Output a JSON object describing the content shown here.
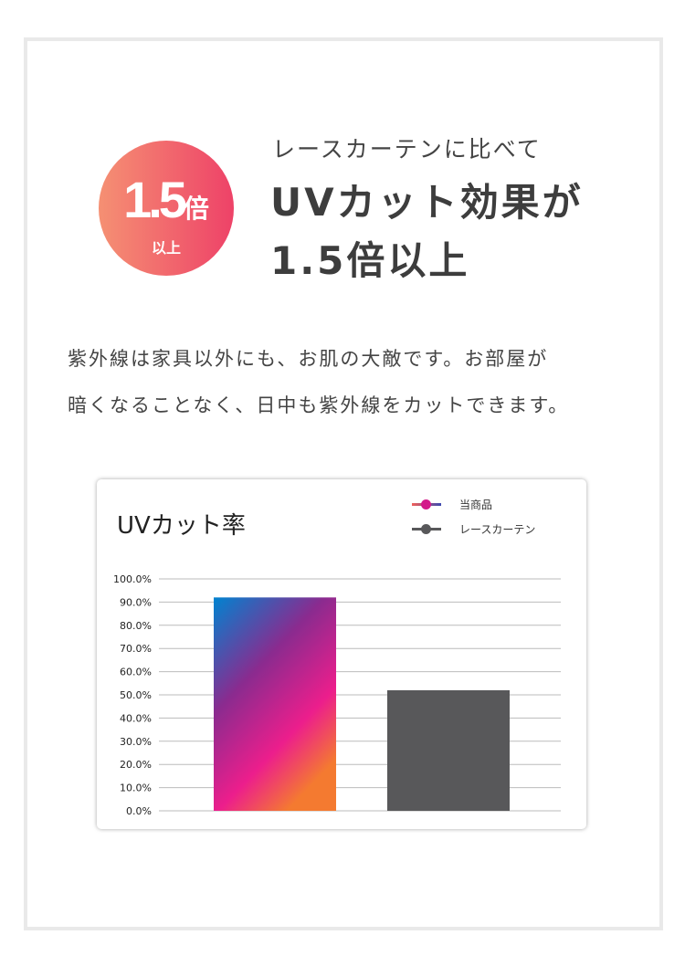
{
  "badge": {
    "value": "1.5",
    "unit": "倍",
    "sub": "以上"
  },
  "heading": {
    "lead": "レースカーテンに比べて",
    "line1": "UVカット効果が",
    "line2": "1.5倍以上"
  },
  "body": {
    "line1": "紫外線は家具以外にも、お肌の大敵です。お部屋が",
    "line2": "暗くなることなく、日中も紫外線をカットできます。"
  },
  "chart_data": {
    "type": "bar",
    "title": "UVカット率",
    "categories": [
      "当商品",
      "レースカーテン"
    ],
    "values": [
      92,
      52
    ],
    "ylim": [
      0,
      100
    ],
    "yticks": [
      "0.0%",
      "10.0%",
      "20.0%",
      "30.0%",
      "40.0%",
      "50.0%",
      "60.0%",
      "70.0%",
      "80.0%",
      "90.0%",
      "100.0%"
    ],
    "grid": true,
    "legend": "top-right",
    "colors": [
      "gradient #0083d0→#8a2b8f→#ec1e8c→#f47a30",
      "#58585a"
    ]
  }
}
